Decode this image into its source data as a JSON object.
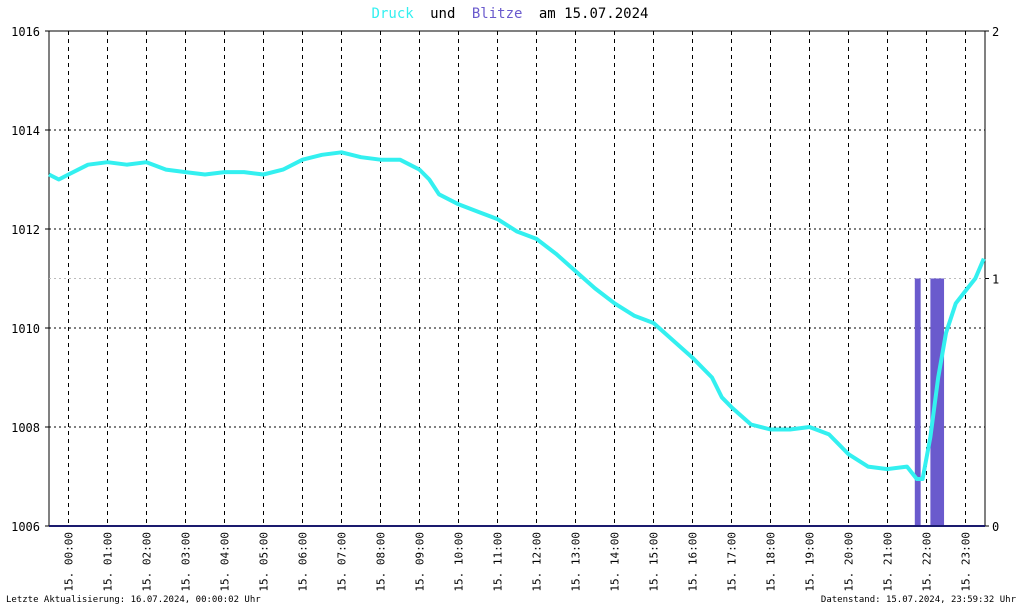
{
  "title": {
    "word1": "Druck",
    "word2": "und",
    "word3": "Blitze",
    "word4": "am 15.07.2024",
    "color_druck": "#33f0f0",
    "color_blitze": "#6a5acd",
    "color_text": "#000000"
  },
  "footer": {
    "left": "Letzte Aktualisierung: 16.07.2024, 00:00:02 Uhr",
    "right": "Datenstand: 15.07.2024, 23:59:32 Uhr"
  },
  "chart_data": {
    "type": "line",
    "grid": true,
    "legend": "none",
    "x_ticks": [
      "15. 00:00",
      "15. 01:00",
      "15. 02:00",
      "15. 03:00",
      "15. 04:00",
      "15. 05:00",
      "15. 06:00",
      "15. 07:00",
      "15. 08:00",
      "15. 09:00",
      "15. 10:00",
      "15. 11:00",
      "15. 12:00",
      "15. 13:00",
      "15. 14:00",
      "15. 15:00",
      "15. 16:00",
      "15. 17:00",
      "15. 18:00",
      "15. 19:00",
      "15. 20:00",
      "15. 21:00",
      "15. 22:00",
      "15. 23:00"
    ],
    "xlim": [
      0,
      24
    ],
    "y_left": {
      "ticks": [
        "1006",
        "1008",
        "1010",
        "1012",
        "1014",
        "1016"
      ],
      "lim": [
        1006,
        1016
      ]
    },
    "y_right": {
      "ticks": [
        "0",
        "1",
        "2"
      ],
      "lim": [
        0,
        2
      ]
    },
    "series": [
      {
        "color": "#33f0f0",
        "axis": "left",
        "type": "line",
        "x": [
          0,
          0.25,
          0.5,
          0.75,
          1,
          1.5,
          2,
          2.5,
          3,
          3.5,
          4,
          4.5,
          5,
          5.5,
          6,
          6.5,
          7,
          7.5,
          8,
          8.5,
          9,
          9.25,
          9.5,
          9.75,
          10,
          10.5,
          11,
          11.5,
          12,
          12.5,
          13,
          13.5,
          14,
          14.5,
          15,
          15.5,
          16,
          16.5,
          17,
          17.25,
          17.5,
          18,
          18.5,
          19,
          19.5,
          20,
          20.5,
          21,
          21.5,
          22,
          22.25,
          22.4,
          22.6,
          22.8,
          23,
          23.25,
          23.5,
          23.75,
          23.97
        ],
        "y": [
          1013.1,
          1013.0,
          1013.1,
          1013.2,
          1013.3,
          1013.35,
          1013.3,
          1013.35,
          1013.2,
          1013.15,
          1013.1,
          1013.15,
          1013.15,
          1013.1,
          1013.2,
          1013.4,
          1013.5,
          1013.55,
          1013.45,
          1013.4,
          1013.4,
          1013.3,
          1013.2,
          1013.0,
          1012.7,
          1012.5,
          1012.35,
          1012.2,
          1011.95,
          1011.8,
          1011.5,
          1011.15,
          1010.8,
          1010.5,
          1010.25,
          1010.1,
          1009.75,
          1009.4,
          1009.0,
          1008.6,
          1008.4,
          1008.05,
          1007.95,
          1007.95,
          1008.0,
          1007.85,
          1007.45,
          1007.2,
          1007.15,
          1007.2,
          1006.95,
          1006.95,
          1007.8,
          1009.0,
          1009.9,
          1010.5,
          1010.75,
          1011.0,
          1011.4
        ]
      },
      {
        "color": "#6a5acd",
        "axis": "right",
        "type": "bar",
        "bars": [
          {
            "x0": 22.2,
            "x1": 22.35,
            "value": 1
          },
          {
            "x0": 22.6,
            "x1": 22.95,
            "value": 1
          }
        ]
      }
    ]
  }
}
